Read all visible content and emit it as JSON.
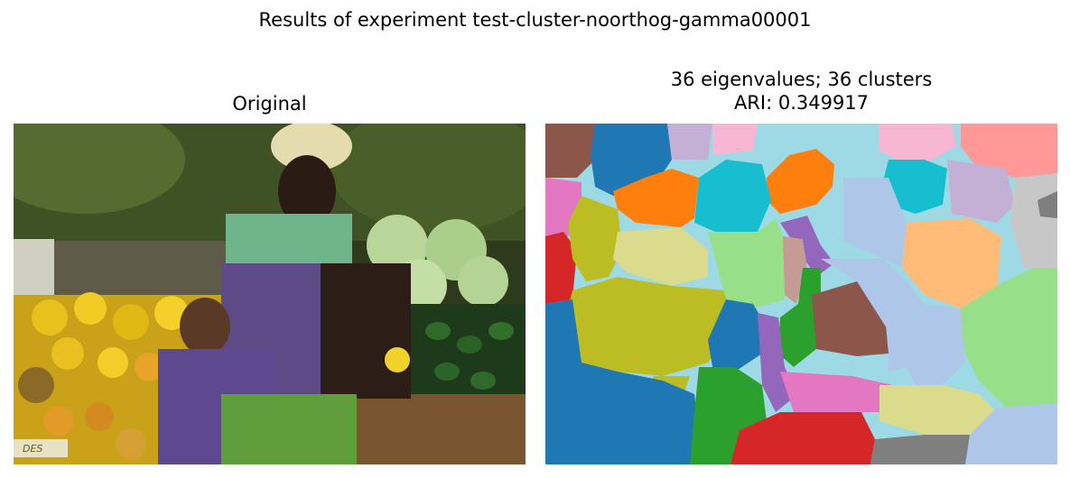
{
  "figure": {
    "suptitle": "Results of experiment test-cluster-noorthog-gamma00001"
  },
  "panels": {
    "left": {
      "title": "Original"
    },
    "right": {
      "title_line1": "36 eigenvalues; 36 clusters",
      "title_line2": "ARI: 0.349917"
    }
  },
  "photo_sign_text": "DES",
  "colors": {
    "tab_blue": "#1f77b4",
    "tab_orange": "#ff7f0e",
    "tab_green": "#2ca02c",
    "tab_red": "#d62728",
    "tab_purple": "#9467bd",
    "tab_brown": "#8c564b",
    "tab_pink": "#e377c2",
    "tab_gray": "#7f7f7f",
    "tab_olive": "#bcbd22",
    "tab_cyan": "#17becf",
    "light_cyan": "#9edae5",
    "light_blue": "#aec7e8",
    "light_green": "#98df8a",
    "light_orange": "#ffbb78",
    "light_purple": "#c5b0d5",
    "light_pink": "#f7b6d2",
    "light_red": "#ff9896",
    "light_olive": "#dbdb8d",
    "light_gray": "#c7c7c7",
    "light_brown": "#c49c94"
  }
}
